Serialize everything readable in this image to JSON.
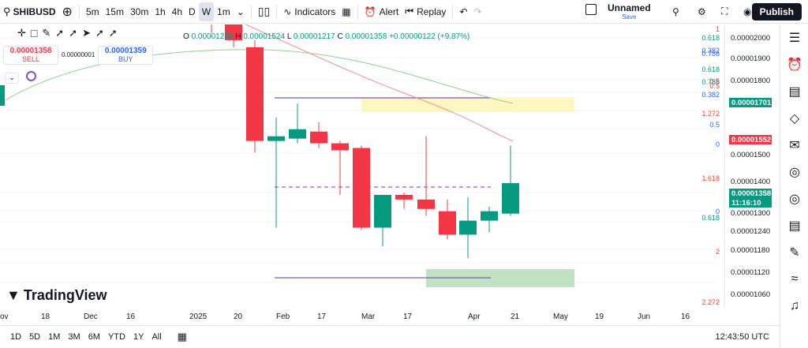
{
  "toolbar": {
    "symbol": "SHIBUSD",
    "timeframes": [
      "5m",
      "15m",
      "30m",
      "1h",
      "4h",
      "D",
      "W",
      "1m"
    ],
    "selected_tf": "W",
    "indicators": "Indicators",
    "alert": "Alert",
    "replay": "Replay",
    "layout_name": "Unnamed",
    "layout_status": "Save",
    "publish": "Publish"
  },
  "ohlc": {
    "o": "O",
    "o_val": "0.00001235",
    "h": "H",
    "h_val": "0.00001524",
    "l": "L",
    "l_val": "0.00001217",
    "c": "C",
    "c_val": "0.00001358",
    "chg": "+0.00000122 (+9.87%)"
  },
  "trade": {
    "sell_price": "0.00001358",
    "sell": "SELL",
    "spread": "0.00000001",
    "buy_price": "0.00001359",
    "buy": "BUY"
  },
  "brand": "TradingView",
  "chart_data": {
    "type": "candlestick",
    "price_ticks": [
      "0.00002000",
      "0.00001900",
      "0.00001800",
      "0.00001500",
      "0.00001400",
      "0.00001300",
      "0.00001240",
      "0.00001180",
      "0.00001120",
      "0.00001060"
    ],
    "time_ticks": [
      "ov",
      "18",
      "Dec",
      "16",
      "2025",
      "20",
      "Feb",
      "17",
      "Mar",
      "17",
      "Apr",
      "21",
      "May",
      "19",
      "Jun",
      "16"
    ],
    "price_labels": [
      {
        "text": "0.00001701",
        "color": "#089981"
      },
      {
        "text": "0.00001552",
        "color": "#f23645"
      },
      {
        "text": "0.00001358",
        "color": "#089981"
      },
      {
        "text": "11:16:10",
        "color": "#089981"
      }
    ],
    "fib_labels": [
      "1",
      "0.618",
      "0.382",
      "0.786",
      "0.618",
      "0.5",
      "0.786",
      "0.5",
      "0.382",
      "1.272",
      "0.5",
      "0",
      "1.618",
      "0",
      "0.618",
      "2",
      "2.272"
    ],
    "candles": [
      {
        "o": 2.1e-05,
        "h": 2.15e-05,
        "l": 2e-05,
        "c": 2.05e-05
      },
      {
        "o": 2.05e-05,
        "h": 2.1e-05,
        "l": 1.94e-05,
        "c": 1.97e-05
      },
      {
        "o": 1.94e-05,
        "h": 1.97e-05,
        "l": 1.49e-05,
        "c": 1.54e-05
      },
      {
        "o": 1.54e-05,
        "h": 1.64e-05,
        "l": 1.17e-05,
        "c": 1.56e-05
      },
      {
        "o": 1.55e-05,
        "h": 1.7e-05,
        "l": 1.53e-05,
        "c": 1.59e-05
      },
      {
        "o": 1.58e-05,
        "h": 1.62e-05,
        "l": 1.51e-05,
        "c": 1.53e-05
      },
      {
        "o": 1.53e-05,
        "h": 1.54e-05,
        "l": 1.31e-05,
        "c": 1.5e-05
      },
      {
        "o": 1.51e-05,
        "h": 1.52e-05,
        "l": 1.16e-05,
        "c": 1.17e-05
      },
      {
        "o": 1.17e-05,
        "h": 1.31e-05,
        "l": 1.09e-05,
        "c": 1.31e-05
      },
      {
        "o": 1.31e-05,
        "h": 1.32e-05,
        "l": 1.25e-05,
        "c": 1.29e-05
      },
      {
        "o": 1.29e-05,
        "h": 1.56e-05,
        "l": 1.22e-05,
        "c": 1.25e-05
      },
      {
        "o": 1.24e-05,
        "h": 1.29e-05,
        "l": 1.12e-05,
        "c": 1.14e-05
      },
      {
        "o": 1.14e-05,
        "h": 1.3e-05,
        "l": 1.04e-05,
        "c": 1.2e-05
      },
      {
        "o": 1.2e-05,
        "h": 1.26e-05,
        "l": 1.15e-05,
        "c": 1.24e-05
      },
      {
        "o": 1.23e-05,
        "h": 1.52e-05,
        "l": 1.22e-05,
        "c": 1.36e-05
      }
    ]
  },
  "bottom": {
    "ranges": [
      "1D",
      "5D",
      "1M",
      "3M",
      "6M",
      "YTD",
      "1Y",
      "All"
    ],
    "clock": "12:43:50 UTC"
  }
}
